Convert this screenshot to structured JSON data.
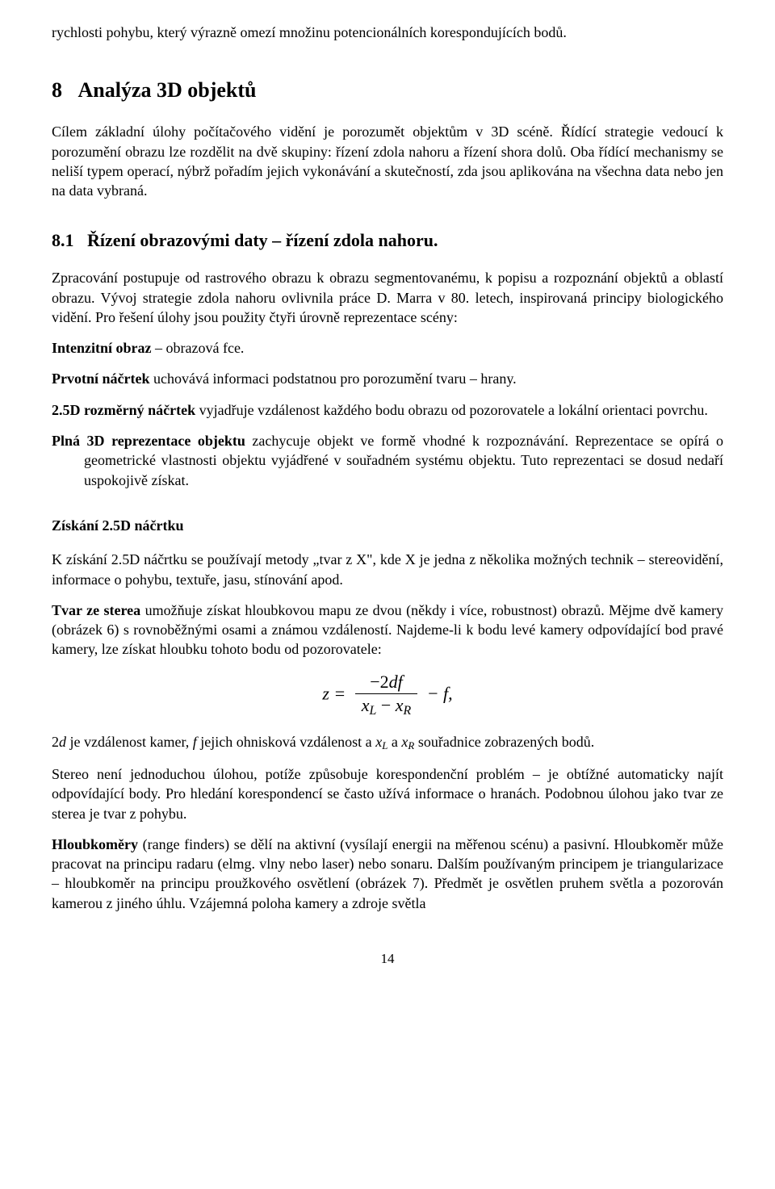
{
  "p_top": "rychlosti pohybu, který výrazně omezí množinu potencionálních korespondujících bodů.",
  "sec8": {
    "num": "8",
    "title": "Analýza 3D objektů",
    "para": "Cílem základní úlohy počítačového vidění je porozumět objektům v 3D scéně. Řídící strategie vedoucí k porozumění obrazu lze rozdělit na dvě skupiny: řízení zdola nahoru a řízení shora dolů. Oba řídící mechanismy se neliší typem operací, nýbrž pořadím jejich vykonávání a skutečností, zda jsou aplikována na všechna data nebo jen na data vybraná."
  },
  "sec81": {
    "num": "8.1",
    "title": "Řízení obrazovými daty – řízení zdola nahoru.",
    "para": "Zpracování postupuje od rastrového obrazu k obrazu segmentovanému, k popisu a rozpoznání objektů a oblastí obrazu. Vývoj strategie zdola nahoru ovlivnila práce D. Marra v 80. letech, inspirovaná principy biologického vidění. Pro řešení úlohy jsou použity čtyři úrovně reprezentace scény:"
  },
  "defs": {
    "d1": {
      "term": "Intenzitní obraz",
      "sep": " – ",
      "body": "obrazová fce."
    },
    "d2": {
      "term": "Prvotní náčrtek",
      "body": " uchovává informaci podstatnou pro porozumění tvaru – hrany."
    },
    "d3": {
      "term": "2.5D rozměrný náčrtek",
      "body": " vyjadřuje vzdálenost každého bodu obrazu od pozorovatele a lokální orientaci povrchu."
    },
    "d4": {
      "term": "Plná 3D reprezentace objektu",
      "body": " zachycuje objekt ve formě vhodné k rozpoznávání. Reprezentace se opírá o geometrické vlastnosti objektu vyjádřené v souřadném systému objektu. Tuto reprezentaci se dosud nedaří uspokojivě získat."
    }
  },
  "ziskani": {
    "title": "Získání 2.5D náčrtku",
    "p1": "K získání 2.5D náčrtku se používají metody „tvar z X\", kde X je jedna z několika možných technik – stereovidění, informace o pohybu, textuře, jasu, stínování apod.",
    "p2a": "Tvar ze sterea",
    "p2b": " umožňuje získat hloubkovou mapu ze dvou (někdy i více, robustnost) obrazů. Mějme dvě kamery (obrázek 6) s rovnoběžnými osami a známou vzdáleností. Najdeme-li k bodu levé kamery odpovídající bod pravé kamery, lze získat hloubku tohoto bodu od pozorovatele:",
    "formula": {
      "lhs": "z =",
      "num_pre": "−2",
      "num_d": "d",
      "num_f": "f",
      "den_xL_x": "x",
      "den_xL_sub": "L",
      "den_minus": " − ",
      "den_xR_x": "x",
      "den_xR_sub": "R",
      "tail": " − f,"
    },
    "p3_a": "2",
    "p3_d": "d",
    "p3_b": " je vzdálenost kamer, ",
    "p3_f": "f",
    "p3_c": " jejich ohnisková vzdálenost a ",
    "p3_xL_x": "x",
    "p3_xL_s": "L",
    "p3_d2": " a ",
    "p3_xR_x": "x",
    "p3_xR_s": "R",
    "p3_e": " souřadnice zobrazených bodů.",
    "p4": "Stereo není jednoduchou úlohou, potíže způsobuje korespondenční problém – je obtížné automaticky najít odpovídající body. Pro hledání korespondencí se často užívá informace o hranách. Podobnou úlohou jako tvar ze sterea je tvar z pohybu.",
    "p5a": "Hloubkoměry",
    "p5b": " (range finders) se dělí na aktivní (vysílají energii na měřenou scénu) a pasivní. Hloubkoměr může pracovat na principu radaru (elmg. vlny nebo laser) nebo sonaru. Dalším používaným principem je triangularizace – hloubkoměr na principu proužkového osvětlení (obrázek 7). Předmět je osvětlen pruhem světla a pozorován kamerou z jiného úhlu. Vzájemná poloha kamery a zdroje světla"
  },
  "pagenum": "14"
}
